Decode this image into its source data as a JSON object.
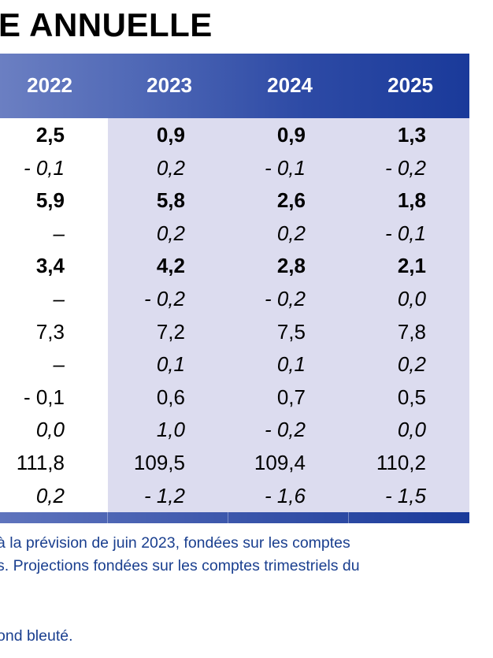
{
  "title": "E ANNUELLE",
  "years": [
    "2022",
    "2023",
    "2024",
    "2025"
  ],
  "rows": [
    {
      "style": "bold",
      "values": [
        "2,5",
        "0,9",
        "0,9",
        "1,3"
      ]
    },
    {
      "style": "italic",
      "values": [
        "- 0,1",
        "0,2",
        "- 0,1",
        "- 0,2"
      ]
    },
    {
      "style": "bold",
      "values": [
        "5,9",
        "5,8",
        "2,6",
        "1,8"
      ]
    },
    {
      "style": "italic",
      "values": [
        "–",
        "0,2",
        "0,2",
        "- 0,1"
      ]
    },
    {
      "style": "bold",
      "values": [
        "3,4",
        "4,2",
        "2,8",
        "2,1"
      ]
    },
    {
      "style": "italic",
      "values": [
        "–",
        "- 0,2",
        "- 0,2",
        "0,0"
      ]
    },
    {
      "style": "normal",
      "values": [
        "7,3",
        "7,2",
        "7,5",
        "7,8"
      ]
    },
    {
      "style": "italic",
      "values": [
        "–",
        "0,1",
        "0,1",
        "0,2"
      ]
    },
    {
      "style": "normal",
      "values": [
        "- 0,1",
        "0,6",
        "0,7",
        "0,5"
      ]
    },
    {
      "style": "italic",
      "values": [
        "0,0",
        "1,0",
        "- 0,2",
        "0,0"
      ]
    },
    {
      "style": "normal",
      "values": [
        "111,8",
        "109,5",
        "109,4",
        "110,2"
      ]
    },
    {
      "style": "italic",
      "values": [
        "0,2",
        "- 1,2",
        "- 1,6",
        "- 1,5"
      ]
    }
  ],
  "notes": [
    "à la prévision de juin 2023, fondées sur les comptes",
    "s. Projections fondées sur les comptes trimestriels du",
    "ond bleuté."
  ],
  "colors": {
    "header_band": "#2d4aa5",
    "shade": "#dcdcef",
    "note_text": "#1a3f8f"
  }
}
